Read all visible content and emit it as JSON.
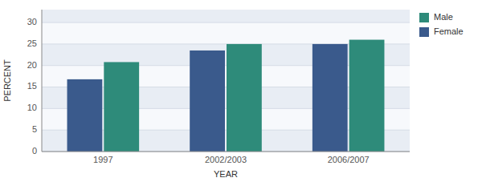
{
  "chart_data": {
    "type": "bar",
    "categories": [
      "1997",
      "2002/2003",
      "2006/2007"
    ],
    "series": [
      {
        "name": "Male",
        "color": "#2e8b7a",
        "values": [
          20.8,
          25.0,
          26.0
        ]
      },
      {
        "name": "Female",
        "color": "#3a5a8c",
        "values": [
          16.8,
          23.5,
          25.0
        ]
      }
    ],
    "x_label": "YEAR",
    "y_label": "PERCENT",
    "ylim": [
      0,
      33
    ],
    "yticks": [
      0,
      5,
      10,
      15,
      20,
      25,
      30
    ],
    "grid": true,
    "legend": "upper right"
  }
}
